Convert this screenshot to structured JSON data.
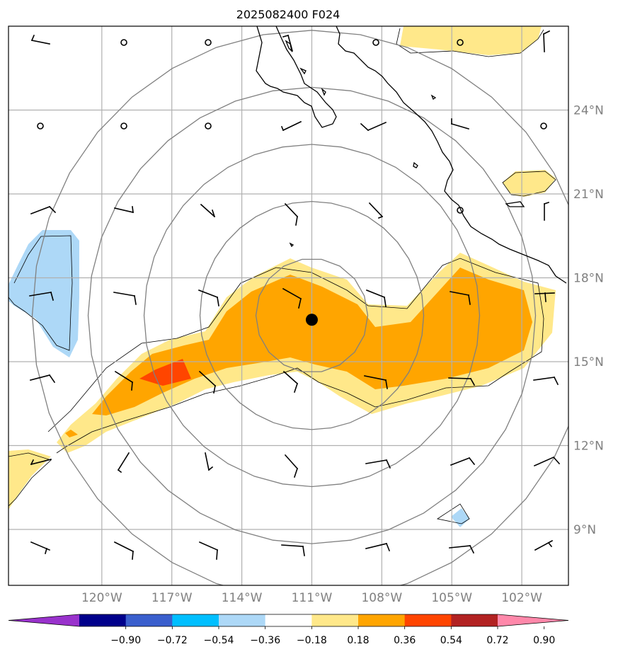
{
  "title": "2025082400 F024",
  "map": {
    "lon_range": [
      -124,
      -100
    ],
    "lat_range": [
      7,
      27
    ],
    "lon_ticks": [
      -120,
      -117,
      -114,
      -111,
      -108,
      -105,
      -102
    ],
    "lat_ticks": [
      9,
      12,
      15,
      18,
      21,
      24
    ],
    "lon_tick_labels": [
      "120°W",
      "117°W",
      "114°W",
      "111°W",
      "108°W",
      "105°W",
      "102°W"
    ],
    "lat_tick_labels": [
      "9°N",
      "12°N",
      "15°N",
      "18°N",
      "21°N",
      "24°N"
    ],
    "grid": true,
    "grid_color": "#b0b0b0",
    "storm_center": {
      "lon": -111,
      "lat": 16.5
    },
    "range_rings_deg": [
      2,
      4,
      6,
      8,
      10
    ],
    "field_colors": {
      "c1": "#ffe88a",
      "c2": "#ffa500",
      "c3": "#ff4500",
      "n1": "#add8f7"
    }
  },
  "colorbar": {
    "colors": [
      "#9932cc",
      "#00008b",
      "#3a5fcd",
      "#00bfff",
      "#add8f7",
      "#ffffff",
      "#ffe88a",
      "#ffa500",
      "#ff4500",
      "#b22222",
      "#ff88aa"
    ],
    "labels": [
      "−0.90",
      "−0.72",
      "−0.54",
      "−0.36",
      "−0.18",
      "0.18",
      "0.36",
      "0.54",
      "0.72",
      "0.90"
    ]
  }
}
